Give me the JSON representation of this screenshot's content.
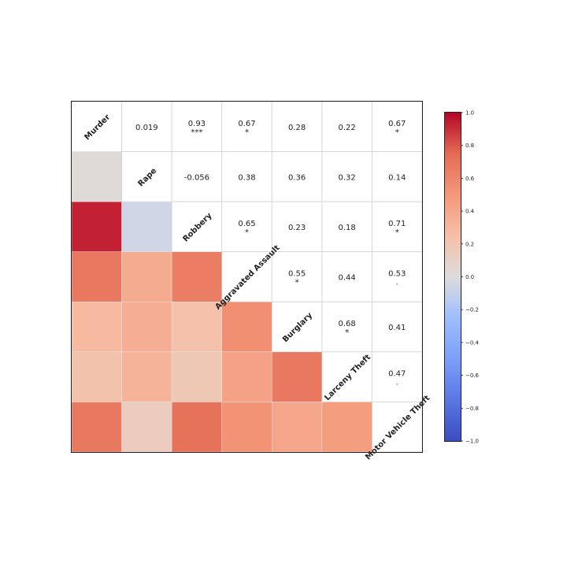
{
  "chart_data": {
    "type": "heatmap",
    "variables": [
      "Murder",
      "Rape",
      "Robbery",
      "Aggravated Assault",
      "Burglary",
      "Larceny Theft",
      "Motor Vehicle Theft"
    ],
    "correlations": [
      [
        1.0,
        0.019,
        0.93,
        0.67,
        0.28,
        0.22,
        0.67
      ],
      [
        0.019,
        1.0,
        -0.056,
        0.38,
        0.36,
        0.32,
        0.14
      ],
      [
        0.93,
        -0.056,
        1.0,
        0.65,
        0.23,
        0.18,
        0.71
      ],
      [
        0.67,
        0.38,
        0.65,
        1.0,
        0.55,
        0.44,
        0.53
      ],
      [
        0.28,
        0.36,
        0.23,
        0.55,
        1.0,
        0.68,
        0.41
      ],
      [
        0.22,
        0.32,
        0.18,
        0.44,
        0.68,
        1.0,
        0.47
      ],
      [
        0.67,
        0.14,
        0.71,
        0.53,
        0.41,
        0.47,
        1.0
      ]
    ],
    "upper_labels": [
      [
        "",
        "0.019",
        "0.93",
        "0.67",
        "0.28",
        "0.22",
        "0.67"
      ],
      [
        "",
        "",
        "-0.056",
        "0.38",
        "0.36",
        "0.32",
        "0.14"
      ],
      [
        "",
        "",
        "",
        "0.65",
        "0.23",
        "0.18",
        "0.71"
      ],
      [
        "",
        "",
        "",
        "",
        "0.55",
        "0.44",
        "0.53"
      ],
      [
        "",
        "",
        "",
        "",
        "",
        "0.68",
        "0.41"
      ],
      [
        "",
        "",
        "",
        "",
        "",
        "",
        "0.47"
      ],
      [
        "",
        "",
        "",
        "",
        "",
        "",
        ""
      ]
    ],
    "significance": [
      [
        "",
        "",
        "***",
        "*",
        "",
        "",
        "*"
      ],
      [
        "",
        "",
        "",
        "",
        "",
        "",
        ""
      ],
      [
        "",
        "",
        "",
        "*",
        "",
        "",
        "*"
      ],
      [
        "",
        "",
        "",
        "",
        "*",
        "",
        "."
      ],
      [
        "",
        "",
        "",
        "",
        "",
        "*",
        ""
      ],
      [
        "",
        "",
        "",
        "",
        "",
        "",
        "."
      ],
      [
        "",
        "",
        "",
        "",
        "",
        "",
        ""
      ]
    ],
    "lower_triangle": "color",
    "upper_triangle": "value",
    "diagonal": "variable names",
    "colormap": "coolwarm",
    "colorbar": {
      "range": [
        -1.0,
        1.0
      ],
      "ticks": [
        "1.0",
        "0.8",
        "0.6",
        "0.4",
        "0.2",
        "0.0",
        "−0.2",
        "−0.4",
        "−0.6",
        "−0.8",
        "−1.0"
      ],
      "tick_values": [
        1.0,
        0.8,
        0.6,
        0.4,
        0.2,
        0.0,
        -0.2,
        -0.4,
        -0.6,
        -0.8,
        -1.0
      ]
    }
  }
}
